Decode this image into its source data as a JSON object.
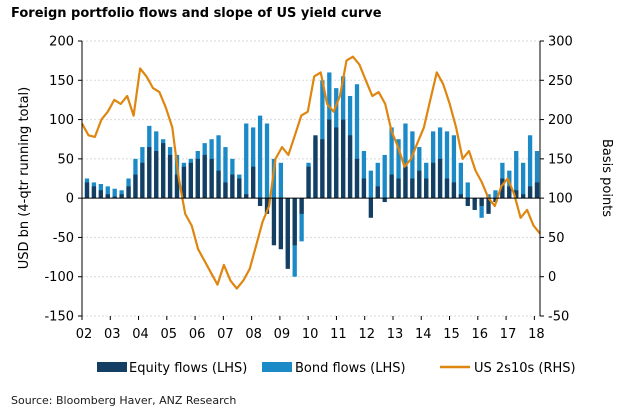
{
  "chart_data": {
    "type": "bar+line",
    "title": "Foreign portfolio flows and slope of US yield curve",
    "source": "Source: Bloomberg Haver, ANZ Research",
    "ylabel_left": "USD bn (4-qtr running total)",
    "ylabel_right": "Basis points",
    "ylim_left": [
      -150,
      200
    ],
    "ylim_right": [
      -50,
      300
    ],
    "yticks_left": [
      200,
      150,
      100,
      50,
      0,
      -50,
      -100,
      -150
    ],
    "yticks_right": [
      300,
      250,
      200,
      150,
      100,
      50,
      0,
      -50
    ],
    "x_tick_labels": [
      "02",
      "03",
      "04",
      "05",
      "06",
      "07",
      "08",
      "09",
      "10",
      "11",
      "12",
      "13",
      "14",
      "15",
      "16",
      "17",
      "18"
    ],
    "grid": true,
    "legend_position": "bottom",
    "colors": {
      "equity": "#143f62",
      "bond": "#1b8ac6",
      "us2s10s": "#de860f",
      "grid": "#d9d9d9",
      "axis": "#000000"
    },
    "series": [
      {
        "name": "Equity flows (LHS)",
        "type": "bar",
        "axis": "left",
        "values": [
          20,
          15,
          10,
          5,
          2,
          5,
          15,
          30,
          45,
          65,
          60,
          70,
          55,
          30,
          40,
          45,
          50,
          55,
          50,
          35,
          20,
          30,
          25,
          5,
          40,
          -10,
          -20,
          -60,
          -65,
          -90,
          -60,
          -20,
          40,
          80,
          75,
          100,
          90,
          100,
          80,
          50,
          25,
          -25,
          15,
          -5,
          30,
          25,
          40,
          25,
          35,
          25,
          45,
          50,
          25,
          20,
          5,
          -10,
          -15,
          -10,
          -20,
          -5,
          25,
          15,
          10,
          5,
          15,
          20
        ]
      },
      {
        "name": "Bond flows (LHS)",
        "type": "bar",
        "axis": "left",
        "values": [
          25,
          20,
          18,
          15,
          12,
          10,
          25,
          50,
          65,
          92,
          85,
          75,
          65,
          55,
          45,
          50,
          60,
          70,
          75,
          80,
          65,
          50,
          30,
          95,
          90,
          105,
          95,
          50,
          45,
          -80,
          -100,
          -55,
          45,
          75,
          150,
          160,
          140,
          155,
          130,
          145,
          60,
          35,
          45,
          55,
          90,
          75,
          95,
          85,
          65,
          45,
          85,
          90,
          85,
          80,
          45,
          20,
          -5,
          -25,
          5,
          10,
          45,
          35,
          60,
          45,
          80,
          60
        ]
      },
      {
        "name": "US 2s10s (RHS)",
        "type": "line",
        "axis": "right",
        "x_year_from": 2002,
        "x_year_to": 2018.2,
        "values": [
          195,
          180,
          178,
          200,
          210,
          225,
          220,
          230,
          205,
          265,
          255,
          240,
          235,
          215,
          190,
          125,
          80,
          65,
          35,
          20,
          5,
          -10,
          15,
          -5,
          -15,
          -5,
          10,
          40,
          70,
          90,
          150,
          165,
          155,
          180,
          205,
          210,
          255,
          260,
          220,
          210,
          230,
          275,
          280,
          270,
          250,
          230,
          235,
          220,
          185,
          165,
          140,
          150,
          170,
          190,
          225,
          260,
          245,
          220,
          190,
          150,
          160,
          135,
          120,
          100,
          90,
          115,
          125,
          105,
          75,
          85,
          65,
          55
        ]
      }
    ]
  }
}
